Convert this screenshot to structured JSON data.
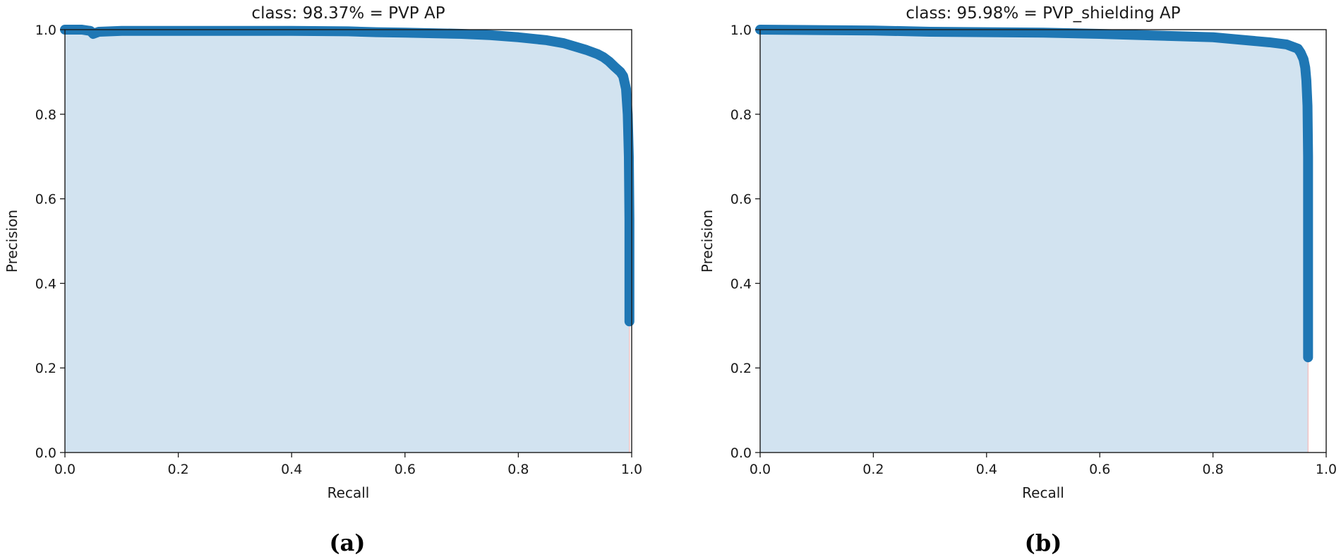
{
  "chart_data": [
    {
      "type": "area",
      "title": "class: 98.37% = PVP AP",
      "xlabel": "Recall",
      "ylabel": "Precision",
      "xlim": [
        0.0,
        1.0
      ],
      "ylim": [
        0.0,
        1.0
      ],
      "xticks": [
        "0.0",
        "0.2",
        "0.4",
        "0.6",
        "0.8",
        "1.0"
      ],
      "yticks": [
        "0.0",
        "0.2",
        "0.4",
        "0.6",
        "0.8",
        "1.0"
      ],
      "caption": "(a)",
      "line_color": "#1f77b4",
      "fill_color": "#d2e3f0",
      "series": [
        {
          "x": [
            0.0,
            0.03,
            0.045,
            0.05,
            0.06,
            0.1,
            0.2,
            0.3,
            0.4,
            0.5,
            0.55,
            0.6,
            0.7,
            0.75,
            0.8,
            0.85,
            0.88,
            0.9,
            0.92,
            0.94,
            0.95,
            0.96,
            0.97,
            0.98,
            0.985,
            0.99,
            0.993,
            0.995,
            0.996,
            0.996,
            0.996
          ],
          "y": [
            1.0,
            1.0,
            0.997,
            0.99,
            0.995,
            0.997,
            0.997,
            0.997,
            0.997,
            0.996,
            0.994,
            0.993,
            0.99,
            0.987,
            0.982,
            0.975,
            0.968,
            0.96,
            0.952,
            0.942,
            0.935,
            0.925,
            0.912,
            0.9,
            0.89,
            0.86,
            0.8,
            0.7,
            0.55,
            0.4,
            0.31
          ]
        }
      ]
    },
    {
      "type": "area",
      "title": "class: 95.98% = PVP_shielding AP",
      "xlabel": "Recall",
      "ylabel": "Precision",
      "xlim": [
        0.0,
        1.0
      ],
      "ylim": [
        0.0,
        1.0
      ],
      "xticks": [
        "0.0",
        "0.2",
        "0.4",
        "0.6",
        "0.8",
        "1.0"
      ],
      "yticks": [
        "0.0",
        "0.2",
        "0.4",
        "0.6",
        "0.8",
        "1.0"
      ],
      "caption": "(b)",
      "line_color": "#1f77b4",
      "fill_color": "#d2e3f0",
      "series": [
        {
          "x": [
            0.0,
            0.1,
            0.2,
            0.3,
            0.4,
            0.5,
            0.6,
            0.7,
            0.8,
            0.85,
            0.9,
            0.93,
            0.94,
            0.95,
            0.955,
            0.96,
            0.963,
            0.965,
            0.967,
            0.968,
            0.968,
            0.968,
            0.968,
            0.968,
            0.968
          ],
          "y": [
            1.0,
            0.999,
            0.998,
            0.995,
            0.994,
            0.993,
            0.99,
            0.986,
            0.982,
            0.976,
            0.97,
            0.965,
            0.96,
            0.955,
            0.945,
            0.93,
            0.91,
            0.88,
            0.82,
            0.7,
            0.6,
            0.45,
            0.35,
            0.27,
            0.225
          ]
        }
      ]
    }
  ]
}
